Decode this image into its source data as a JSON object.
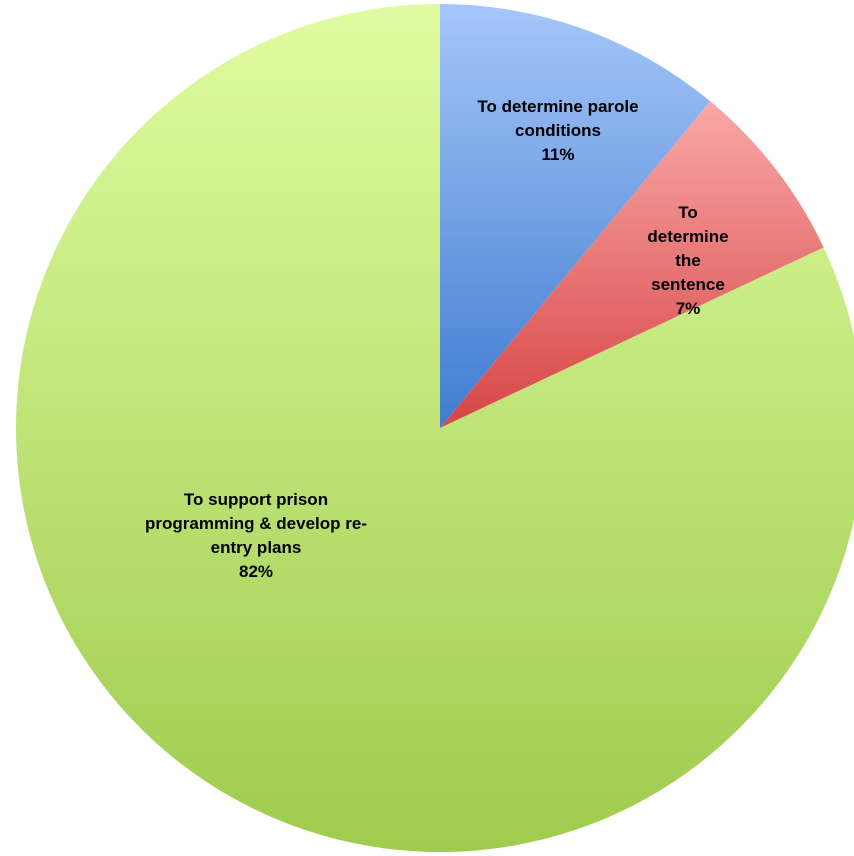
{
  "chart_data": {
    "type": "pie",
    "title": "",
    "slices": [
      {
        "label_lines": [
          "To determine parole",
          "conditions"
        ],
        "value_label": "11%",
        "value": 11,
        "color": "#7fa6e2"
      },
      {
        "label_lines": [
          "To",
          "determine",
          "the",
          "sentence"
        ],
        "value_label": "7%",
        "value": 7,
        "color": "#e87b7b"
      },
      {
        "label_lines": [
          "To support prison",
          "programming & develop re-",
          "entry plans"
        ],
        "value_label": "82%",
        "value": 82,
        "color": "#c1e07e"
      }
    ],
    "legend": "none"
  }
}
